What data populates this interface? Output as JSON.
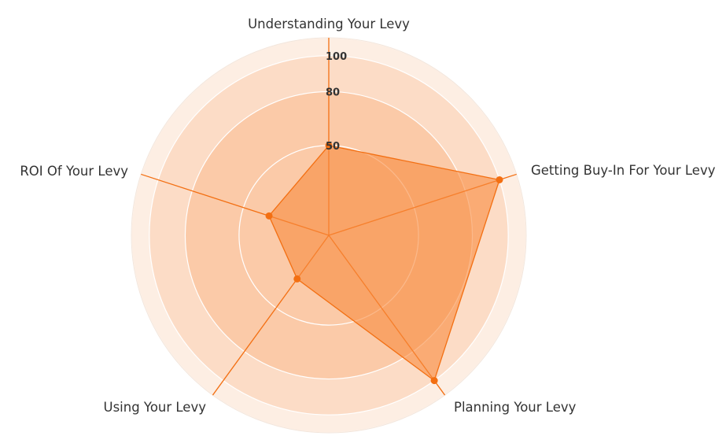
{
  "chart_data": {
    "type": "radar",
    "axes": [
      "Understanding Your Levy",
      "Getting Buy-In For Your Levy",
      "Planning Your Levy",
      "Using Your Levy",
      "ROI Of Your Levy"
    ],
    "series": [
      {
        "values": [
          50,
          100,
          100,
          30,
          35
        ]
      }
    ],
    "radial_ticks": [
      "50",
      "80",
      "100"
    ],
    "radial_tick_values": [
      50,
      80,
      100
    ],
    "band_values": [
      50,
      80,
      100,
      110
    ],
    "range": [
      0,
      110
    ],
    "grid": true,
    "legend": "none"
  },
  "colors": {
    "series_line": "#f36f12",
    "series_fill": "#f98a3d",
    "band_outer": "#fdeee3",
    "band_middle": "#fcdcc6",
    "band_inner": "#fbcaa8"
  }
}
